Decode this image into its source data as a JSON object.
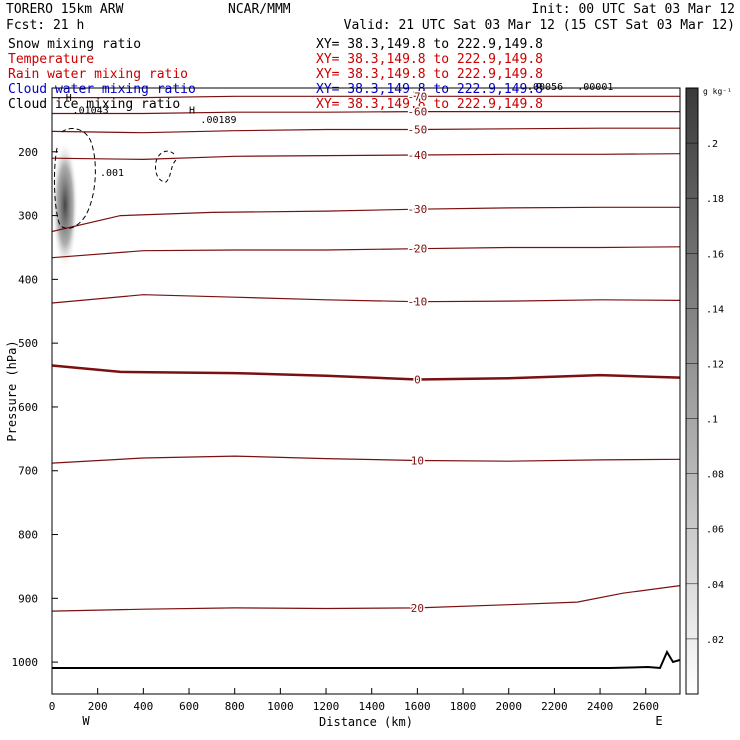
{
  "header": {
    "model": "TORERO  15km ARW",
    "center": "NCAR/MMM",
    "init": "Init: 00 UTC Sat 03 Mar 12",
    "fcst": "Fcst:   21 h",
    "valid": "Valid: 21 UTC Sat 03 Mar 12 (15 CST Sat 03 Mar 12)"
  },
  "fields": [
    {
      "name": "Snow mixing ratio",
      "xy": "XY=  38.3,149.8 to 222.9,149.8",
      "color": "#000000"
    },
    {
      "name": "Temperature",
      "xy": "XY=  38.3,149.8 to 222.9,149.8",
      "color": "#cc0000"
    },
    {
      "name": "Rain water mixing ratio",
      "xy": "XY=  38.3,149.8 to 222.9,149.8",
      "color": "#cc0000"
    },
    {
      "name": "Cloud water mixing ratio",
      "xy": "XY=  38.3,149.8 to 222.9,149.8",
      "color": "#0000cc"
    },
    {
      "name": "Cloud ice mixing ratio",
      "xy": "XY=  38.3,149.8 to 222.9,149.8",
      "color": "#000000"
    }
  ],
  "chart_data": {
    "type": "line",
    "xlabel": "Distance (km)",
    "ylabel": "Pressure (hPa)",
    "xlim": [
      0,
      2750
    ],
    "ylim": [
      1050,
      100
    ],
    "x_ticks": [
      0,
      200,
      400,
      600,
      800,
      1000,
      1200,
      1400,
      1600,
      1800,
      2000,
      2200,
      2400,
      2600
    ],
    "y_ticks": [
      200,
      300,
      400,
      500,
      600,
      700,
      800,
      900,
      1000
    ],
    "x_end_labels": {
      "left": "W",
      "right": "E"
    },
    "colorbar": {
      "unit": "g kg⁻¹",
      "range": [
        0,
        0.22
      ],
      "labels": [
        ".02",
        ".04",
        ".06",
        ".08",
        ".1",
        ".12",
        ".14",
        ".16",
        ".18",
        ".2"
      ]
    },
    "temperature_isotherms": [
      {
        "label": "-70",
        "points": [
          [
            0,
            115
          ],
          [
            400,
            115
          ],
          [
            800,
            113
          ],
          [
            1200,
            113
          ],
          [
            1600,
            113
          ],
          [
            2000,
            113
          ],
          [
            2400,
            113
          ],
          [
            2750,
            113
          ]
        ]
      },
      {
        "label": "-60",
        "points": [
          [
            0,
            140
          ],
          [
            400,
            140
          ],
          [
            800,
            138
          ],
          [
            1200,
            138
          ],
          [
            1600,
            137
          ],
          [
            2000,
            137
          ],
          [
            2400,
            137
          ],
          [
            2750,
            137
          ]
        ]
      },
      {
        "label": "-50",
        "points": [
          [
            0,
            168
          ],
          [
            400,
            170
          ],
          [
            800,
            167
          ],
          [
            1200,
            165
          ],
          [
            1600,
            165
          ],
          [
            2000,
            164
          ],
          [
            2400,
            163
          ],
          [
            2750,
            163
          ]
        ]
      },
      {
        "label": "-40",
        "points": [
          [
            0,
            210
          ],
          [
            400,
            212
          ],
          [
            800,
            207
          ],
          [
            1200,
            206
          ],
          [
            1600,
            205
          ],
          [
            2000,
            204
          ],
          [
            2400,
            204
          ],
          [
            2750,
            203
          ]
        ]
      },
      {
        "label": "-30",
        "points": [
          [
            0,
            325
          ],
          [
            300,
            300
          ],
          [
            700,
            295
          ],
          [
            1200,
            293
          ],
          [
            1600,
            290
          ],
          [
            2000,
            288
          ],
          [
            2400,
            287
          ],
          [
            2750,
            287
          ]
        ]
      },
      {
        "label": "-20",
        "points": [
          [
            0,
            366
          ],
          [
            400,
            355
          ],
          [
            800,
            354
          ],
          [
            1200,
            354
          ],
          [
            1600,
            352
          ],
          [
            2000,
            350
          ],
          [
            2400,
            350
          ],
          [
            2750,
            349
          ]
        ]
      },
      {
        "label": "-10",
        "points": [
          [
            0,
            437
          ],
          [
            400,
            424
          ],
          [
            800,
            428
          ],
          [
            1200,
            432
          ],
          [
            1600,
            435
          ],
          [
            2000,
            434
          ],
          [
            2400,
            432
          ],
          [
            2750,
            433
          ]
        ]
      },
      {
        "label": "0",
        "points": [
          [
            0,
            535
          ],
          [
            300,
            545
          ],
          [
            800,
            547
          ],
          [
            1200,
            551
          ],
          [
            1600,
            557
          ],
          [
            2000,
            555
          ],
          [
            2400,
            550
          ],
          [
            2750,
            554
          ]
        ]
      },
      {
        "label": "10",
        "points": [
          [
            0,
            688
          ],
          [
            400,
            680
          ],
          [
            800,
            677
          ],
          [
            1200,
            681
          ],
          [
            1600,
            684
          ],
          [
            2000,
            685
          ],
          [
            2400,
            683
          ],
          [
            2750,
            682
          ]
        ]
      },
      {
        "label": "20",
        "points": [
          [
            0,
            920
          ],
          [
            400,
            917
          ],
          [
            800,
            915
          ],
          [
            1200,
            916
          ],
          [
            1600,
            915
          ],
          [
            2000,
            910
          ],
          [
            2300,
            906
          ],
          [
            2500,
            892
          ],
          [
            2750,
            880
          ]
        ]
      }
    ],
    "annotations": [
      {
        "label": "H",
        "x": 60,
        "p": 120
      },
      {
        "label": ".01043",
        "x": 90,
        "p": 140
      },
      {
        "label": ".001",
        "x": 210,
        "p": 238
      },
      {
        "label": "H",
        "x": 600,
        "p": 140
      },
      {
        "label": ".00189",
        "x": 650,
        "p": 155
      },
      {
        "label": ".00056",
        "x": 2080,
        "p": 103
      },
      {
        "label": ".00001",
        "x": 2300,
        "p": 103
      }
    ]
  }
}
